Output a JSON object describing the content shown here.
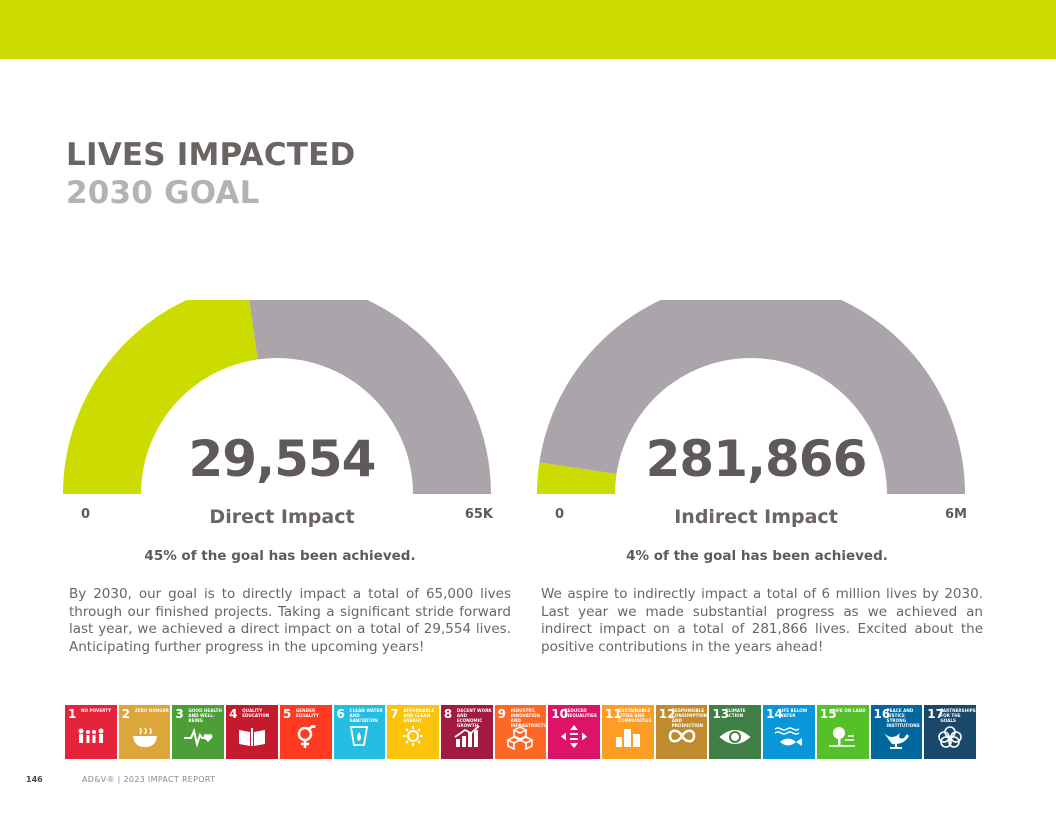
{
  "title": {
    "line1": "LIVES IMPACTED",
    "line2": "2030 GOAL"
  },
  "colors": {
    "accent": "#cddc00",
    "track": "#aca4ab",
    "text": "#6a6563",
    "subtitle": "#b6b2b3"
  },
  "chart_data": [
    {
      "type": "gauge",
      "label": "Direct Impact",
      "value": 29554,
      "value_text": "29,554",
      "min": 0,
      "max": 65000,
      "min_label": "0",
      "max_label": "65K",
      "fraction_achieved": 0.45,
      "achieved_text": "45% of the goal has been achieved."
    },
    {
      "type": "gauge",
      "label": "Indirect Impact",
      "value": 281866,
      "value_text": "281,866",
      "min": 0,
      "max": 6000000,
      "min_label": "0",
      "max_label": "6M",
      "fraction_achieved": 0.04,
      "achieved_text": "4% of the goal has been achieved."
    }
  ],
  "paragraphs": {
    "direct": "By 2030, our goal is to directly impact a total of 65,000 lives through our finished projects. Taking a significant stride forward last year, we achieved a direct impact on a total of 29,554 lives. Anticipating further progress in the upcoming years!",
    "indirect": "We aspire to indirectly impact a total of 6 million lives by 2030. Last year we made substantial progress as we achieved an indirect impact on a total of 281,866 lives. Excited about the positive contributions in the years ahead!"
  },
  "sdgs": [
    {
      "number": "1",
      "label": "No Poverty",
      "color": "#e5243b",
      "icon": "family-icon"
    },
    {
      "number": "2",
      "label": "Zero Hunger",
      "color": "#dda63a",
      "icon": "bowl-icon"
    },
    {
      "number": "3",
      "label": "Good Health and Well-Being",
      "color": "#4c9f38",
      "icon": "heartbeat-icon"
    },
    {
      "number": "4",
      "label": "Quality Education",
      "color": "#c5192d",
      "icon": "book-icon"
    },
    {
      "number": "5",
      "label": "Gender Equality",
      "color": "#ff3a21",
      "icon": "gender-icon"
    },
    {
      "number": "6",
      "label": "Clean Water and Sanitation",
      "color": "#26bde2",
      "icon": "water-drop-icon"
    },
    {
      "number": "7",
      "label": "Affordable and Clean Energy",
      "color": "#fcc30b",
      "icon": "sun-icon"
    },
    {
      "number": "8",
      "label": "Decent Work and Economic Growth",
      "color": "#a21942",
      "icon": "growth-chart-icon"
    },
    {
      "number": "9",
      "label": "Industry, Innovation and Infrastructure",
      "color": "#fd6925",
      "icon": "cubes-icon"
    },
    {
      "number": "10",
      "label": "Reduced Inequalities",
      "color": "#dd1367",
      "icon": "equality-arrows-icon"
    },
    {
      "number": "11",
      "label": "Sustainable Cities and Communities",
      "color": "#fd9d24",
      "icon": "city-icon"
    },
    {
      "number": "12",
      "label": "Responsible Consumption and Production",
      "color": "#bf8b2e",
      "icon": "infinity-icon"
    },
    {
      "number": "13",
      "label": "Climate Action",
      "color": "#3f7e44",
      "icon": "eye-globe-icon"
    },
    {
      "number": "14",
      "label": "Life Below Water",
      "color": "#0a97d9",
      "icon": "fish-icon"
    },
    {
      "number": "15",
      "label": "Life on Land",
      "color": "#56c02b",
      "icon": "tree-icon"
    },
    {
      "number": "16",
      "label": "Peace and Justice Strong Institutions",
      "color": "#00689d",
      "icon": "dove-icon"
    },
    {
      "number": "17",
      "label": "Partnerships for the Goals",
      "color": "#19486a",
      "icon": "rings-icon"
    }
  ],
  "footer": {
    "page_number": "146",
    "brand": "AD&V® | 2023 IMPACT REPORT"
  }
}
